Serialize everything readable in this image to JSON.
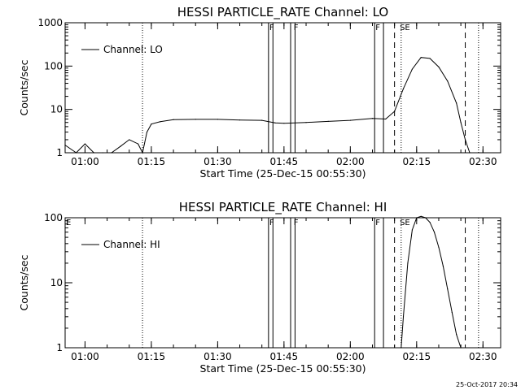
{
  "chart_data": [
    {
      "type": "line",
      "title": "HESSI PARTICLE_RATE Channel: LO",
      "xlabel": "Start Time (25-Dec-15 00:55:30)",
      "ylabel": "Counts/sec",
      "y_scale": "log",
      "ylim": [
        1,
        1000
      ],
      "xlim": [
        "00:55:30",
        "02:34:00"
      ],
      "x_ticks": [
        "01:00",
        "01:15",
        "01:30",
        "01:45",
        "02:00",
        "02:15",
        "02:30"
      ],
      "y_ticks": [
        "1",
        "10",
        "100",
        "1000"
      ],
      "legend": {
        "position": "top-left",
        "entries": [
          "Channel: LO"
        ]
      },
      "series": [
        {
          "name": "Channel: LO",
          "x": [
            "00:55:30",
            "00:58",
            "01:00",
            "01:02",
            "01:04",
            "01:06",
            "01:08",
            "01:10",
            "01:12",
            "01:13",
            "01:14",
            "01:15",
            "01:17",
            "01:20",
            "01:25",
            "01:30",
            "01:35",
            "01:40",
            "01:43",
            "01:45",
            "01:50",
            "01:55",
            "02:00",
            "02:05",
            "02:08",
            "02:10",
            "02:12",
            "02:14",
            "02:16",
            "02:18",
            "02:20",
            "02:22",
            "02:24",
            "02:25",
            "02:26",
            "02:27"
          ],
          "y": [
            1.5,
            1.0,
            1.6,
            1.0,
            1.0,
            1.0,
            1.4,
            2.0,
            1.6,
            1.0,
            3.0,
            4.6,
            5.2,
            5.8,
            5.9,
            5.9,
            5.7,
            5.6,
            4.9,
            4.8,
            5.0,
            5.3,
            5.6,
            6.2,
            6.0,
            9.0,
            30,
            85,
            158,
            150,
            95,
            45,
            14,
            5,
            2,
            1
          ]
        }
      ],
      "annotations": {
        "flags": [
          {
            "label": "F",
            "time": "01:41:30"
          },
          {
            "label": "F",
            "time": "01:47:00"
          },
          {
            "label": "F",
            "time": "02:05:30"
          },
          {
            "label": "SE",
            "time": "02:11:00"
          }
        ],
        "solid_lines": [
          "01:41:30",
          "01:42:30",
          "01:46:30",
          "01:47:30",
          "02:05:30",
          "02:07:30"
        ],
        "dashed_lines": [
          "02:10:00",
          "02:26:00"
        ],
        "dotted_lines": [
          "01:13:00",
          "02:11:30",
          "02:29:00"
        ]
      }
    },
    {
      "type": "line",
      "title": "HESSI PARTICLE_RATE Channel: HI",
      "xlabel": "Start Time (25-Dec-15 00:55:30)",
      "ylabel": "Counts/sec",
      "y_scale": "log",
      "ylim": [
        1,
        100
      ],
      "xlim": [
        "00:55:30",
        "02:34:00"
      ],
      "x_ticks": [
        "01:00",
        "01:15",
        "01:30",
        "01:45",
        "02:00",
        "02:15",
        "02:30"
      ],
      "y_ticks": [
        "1",
        "10",
        "100"
      ],
      "legend": {
        "position": "top-left",
        "entries": [
          "Channel: HI"
        ]
      },
      "series": [
        {
          "name": "Channel: HI",
          "x": [
            "02:11:30",
            "02:12",
            "02:13",
            "02:14",
            "02:15",
            "02:16",
            "02:17",
            "02:18",
            "02:19",
            "02:20",
            "02:21",
            "02:22",
            "02:23",
            "02:24",
            "02:25"
          ],
          "y": [
            1,
            3,
            20,
            65,
            100,
            105,
            100,
            85,
            60,
            35,
            18,
            8,
            3.5,
            1.6,
            1
          ]
        }
      ],
      "annotations": {
        "flags": [
          {
            "label": "E",
            "time": "00:55:30"
          },
          {
            "label": "F",
            "time": "01:41:30"
          },
          {
            "label": "F",
            "time": "01:47:00"
          },
          {
            "label": "F",
            "time": "02:05:30"
          },
          {
            "label": "SE",
            "time": "02:11:00"
          }
        ],
        "solid_lines": [
          "01:41:30",
          "01:42:30",
          "01:46:30",
          "01:47:30",
          "02:05:30",
          "02:07:30"
        ],
        "dashed_lines": [
          "02:10:00",
          "02:26:00"
        ],
        "dotted_lines": [
          "01:13:00",
          "02:11:30",
          "02:29:00"
        ]
      }
    }
  ],
  "footer": {
    "timestamp": "25-Oct-2017 20:34"
  }
}
